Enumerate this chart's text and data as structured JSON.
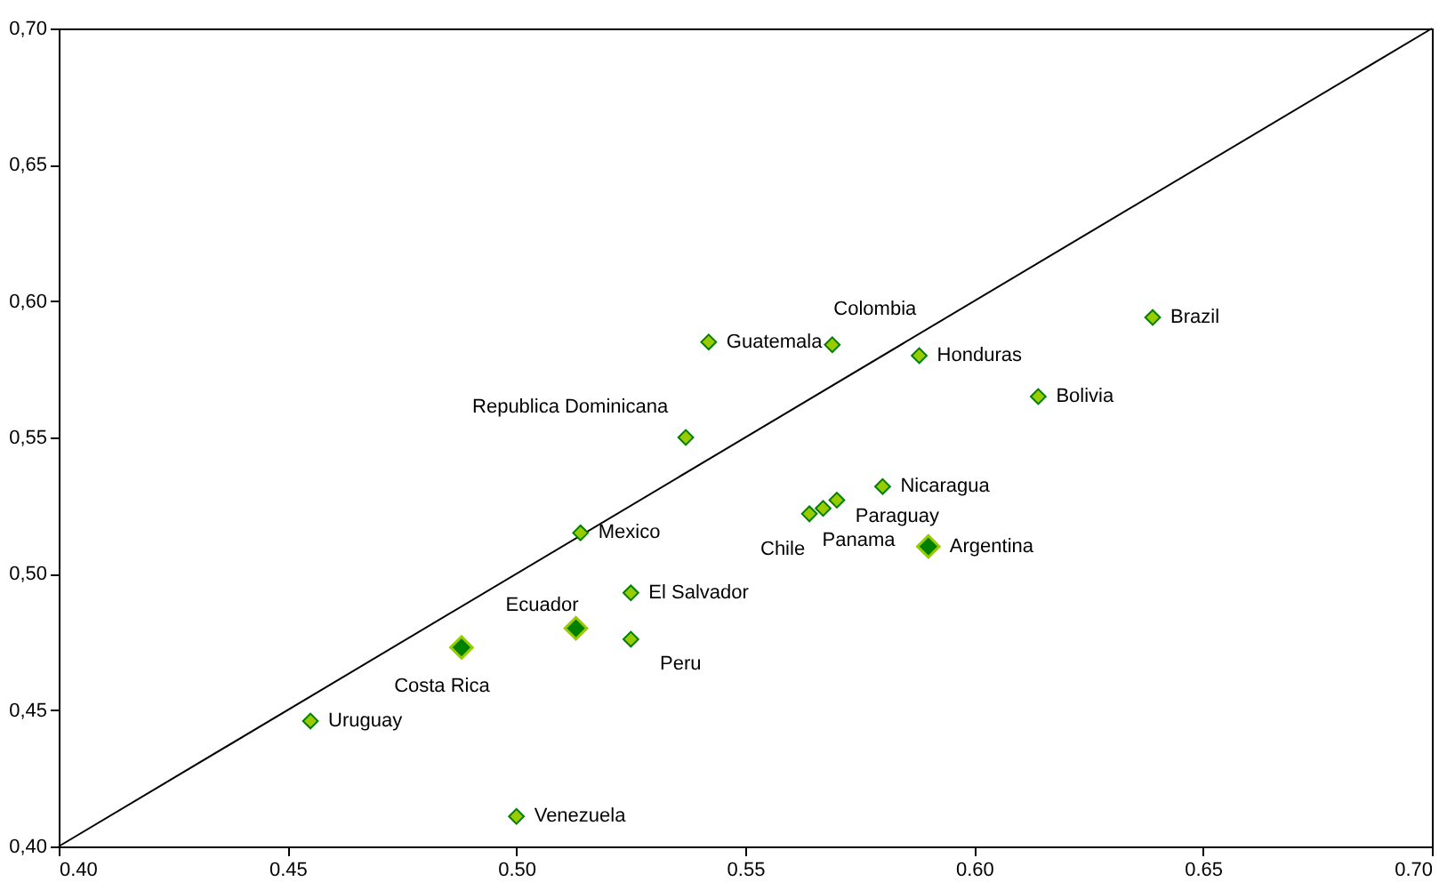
{
  "chart_data": {
    "type": "scatter",
    "xlim": [
      0.4,
      0.7
    ],
    "ylim": [
      0.4,
      0.7
    ],
    "xticks": [
      {
        "value": 0.4,
        "label": "0.40"
      },
      {
        "value": 0.45,
        "label": "0.45"
      },
      {
        "value": 0.5,
        "label": "0.50"
      },
      {
        "value": 0.55,
        "label": "0.55"
      },
      {
        "value": 0.6,
        "label": "0.60"
      },
      {
        "value": 0.65,
        "label": "0.65"
      },
      {
        "value": 0.7,
        "label": "0.70"
      }
    ],
    "yticks": [
      {
        "value": 0.4,
        "label": "0,40"
      },
      {
        "value": 0.45,
        "label": "0,45"
      },
      {
        "value": 0.5,
        "label": "0,50"
      },
      {
        "value": 0.55,
        "label": "0,55"
      },
      {
        "value": 0.6,
        "label": "0,60"
      },
      {
        "value": 0.65,
        "label": "0,65"
      },
      {
        "value": 0.7,
        "label": "0,70"
      }
    ],
    "grid": false,
    "marker": "diamond",
    "series": [
      {
        "type": "line",
        "marker": "none",
        "color": "#000000",
        "x": [
          0.4,
          0.7
        ],
        "values": [
          0.4,
          0.7
        ]
      },
      {
        "color": "#99cc00",
        "x": [
          0.639,
          0.614,
          0.588,
          0.569,
          0.542,
          0.537,
          0.58,
          0.57,
          0.567,
          0.564,
          0.514,
          0.525,
          0.525,
          0.455,
          0.5
        ],
        "values": [
          0.594,
          0.565,
          0.58,
          0.584,
          0.585,
          0.55,
          0.532,
          0.527,
          0.524,
          0.522,
          0.515,
          0.493,
          0.476,
          0.446,
          0.411
        ]
      },
      {
        "color": "#008000",
        "x": [
          0.59,
          0.513,
          0.488
        ],
        "values": [
          0.51,
          0.48,
          0.473
        ]
      }
    ],
    "annotations": [
      {
        "text": "Brazil",
        "x": 0.639,
        "y": 0.594
      },
      {
        "text": "Bolivia",
        "x": 0.614,
        "y": 0.565
      },
      {
        "text": "Honduras",
        "x": 0.588,
        "y": 0.58
      },
      {
        "text": "Colombia",
        "x": 0.569,
        "y": 0.584
      },
      {
        "text": "Guatemala",
        "x": 0.542,
        "y": 0.585
      },
      {
        "text": "Republica Dominicana",
        "x": 0.537,
        "y": 0.55
      },
      {
        "text": "Nicaragua",
        "x": 0.58,
        "y": 0.532
      },
      {
        "text": "Paraguay",
        "x": 0.57,
        "y": 0.527
      },
      {
        "text": "Panama",
        "x": 0.567,
        "y": 0.524
      },
      {
        "text": "Chile",
        "x": 0.564,
        "y": 0.522
      },
      {
        "text": "Mexico",
        "x": 0.514,
        "y": 0.515
      },
      {
        "text": "El Salvador",
        "x": 0.525,
        "y": 0.493
      },
      {
        "text": "Peru",
        "x": 0.525,
        "y": 0.476
      },
      {
        "text": "Uruguay",
        "x": 0.455,
        "y": 0.446
      },
      {
        "text": "Venezuela",
        "x": 0.5,
        "y": 0.411
      },
      {
        "text": "Argentina",
        "x": 0.59,
        "y": 0.51
      },
      {
        "text": "Ecuador",
        "x": 0.513,
        "y": 0.48
      },
      {
        "text": "Costa Rica",
        "x": 0.488,
        "y": 0.473
      }
    ]
  }
}
